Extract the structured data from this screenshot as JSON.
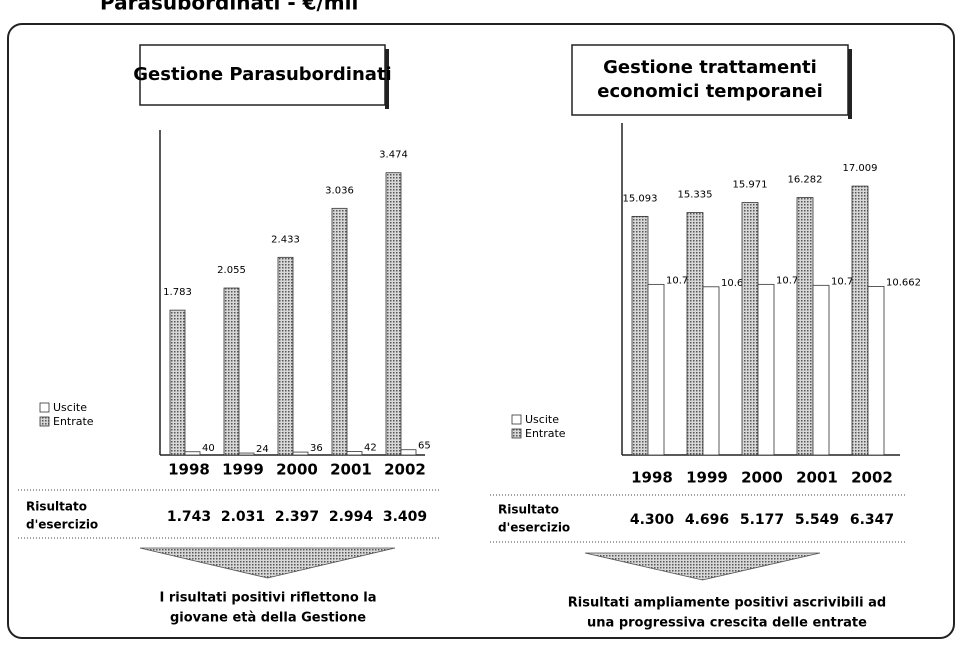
{
  "header": {
    "title": "Parasubordinati - €/mil"
  },
  "chart_data": [
    {
      "type": "bar",
      "title": [
        "Gestione Parasubordinati"
      ],
      "categories": [
        "1998",
        "1999",
        "2000",
        "2001",
        "2002"
      ],
      "series": [
        {
          "name": "Uscite",
          "color": "#ffffff",
          "hatch": false,
          "values": [
            40,
            24,
            36,
            42,
            65
          ],
          "value_labels": [
            "40",
            "24",
            "36",
            "42",
            "65"
          ]
        },
        {
          "name": "Entrate",
          "color": "#8a8a8a",
          "hatch": true,
          "values": [
            1783,
            2055,
            2433,
            3036,
            3474
          ],
          "value_labels": [
            "1.783",
            "2.055",
            "2.433",
            "3.036",
            "3.474"
          ]
        }
      ],
      "ylim": [
        0,
        4000
      ],
      "result_label": [
        "Risultato",
        "d'esercizio"
      ],
      "result_values": [
        1743,
        2031,
        2397,
        2994,
        3409
      ],
      "result_labels": [
        "1.743",
        "2.031",
        "2.397",
        "2.994",
        "3.409"
      ],
      "note": [
        "I risultati positivi riflettono la",
        "giovane età della Gestione"
      ]
    },
    {
      "type": "bar",
      "title": [
        "Gestione trattamenti",
        "economici temporanei"
      ],
      "categories": [
        "1998",
        "1999",
        "2000",
        "2001",
        "2002"
      ],
      "series": [
        {
          "name": "Uscite",
          "color": "#ffffff",
          "hatch": false,
          "values": [
            10793,
            10639,
            10794,
            10733,
            10662
          ],
          "value_labels": [
            "10.793",
            "10.639",
            "10.794",
            "10.733",
            "10.662"
          ]
        },
        {
          "name": "Entrate",
          "color": "#8a8a8a",
          "hatch": true,
          "values": [
            15093,
            15335,
            15971,
            16282,
            17009
          ],
          "value_labels": [
            "15.093",
            "15.335",
            "15.971",
            "16.282",
            "17.009"
          ]
        }
      ],
      "ylim": [
        0,
        21000
      ],
      "result_label": [
        "Risultato",
        "d'esercizio"
      ],
      "result_values": [
        4300,
        4696,
        5177,
        5549,
        6347
      ],
      "result_labels": [
        "4.300",
        "4.696",
        "5.177",
        "5.549",
        "6.347"
      ],
      "note": [
        "Risultati ampliamente positivi ascrivibili ad",
        "una progressiva crescita delle entrate"
      ]
    }
  ]
}
